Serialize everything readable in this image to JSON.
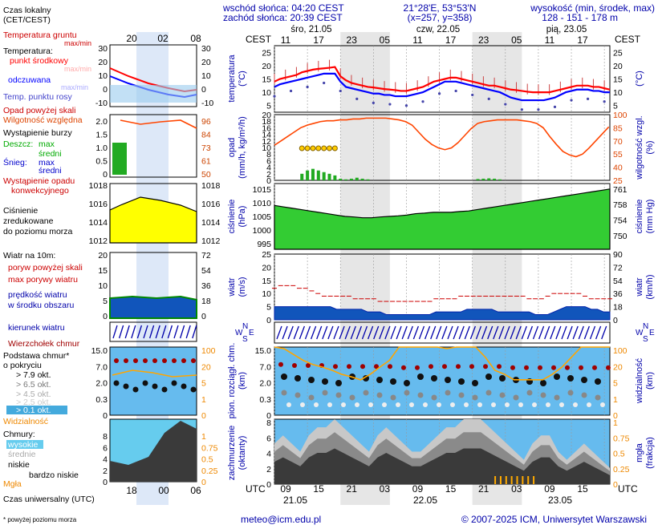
{
  "header": {
    "sunrise": "wschód słońca: 04:20 CEST",
    "sunset": "zachód słońca: 20:39 CEST",
    "coords": "21°28'E, 53°53'N",
    "grid": "(x=257, y=358)",
    "elev_label": "wysokość (min, środek, max)",
    "elev_values": "128 - 151 - 178 m"
  },
  "footer": {
    "note": "* powyżej poziomu morza",
    "email": "meteo@icm.edu.pl",
    "copyright": "© 2007-2025 ICM, Uniwersytet Warszawski"
  },
  "legend": {
    "local_time": "Czas lokalny",
    "local_time2": "(CET/CEST)",
    "soil_temp": "Temperatura gruntu",
    "soil_maxmin": "max/min",
    "temperature": "Temperatura:",
    "midpoint": "punkt środkowy",
    "maxmin": "max/min",
    "felt": "odczuwana",
    "felt_maxmin": "max/min",
    "dewpoint": "Temp. punktu rosy",
    "precip_above": "Opad powyżej skali",
    "humidity": "Wilgotność względna",
    "storm": "Wystąpienie burzy",
    "rain": "Deszcz:",
    "rain_max": "max",
    "rain_mean": "średni",
    "snow": "Śnieg:",
    "snow_max": "max",
    "snow_mean": "średni",
    "conv1": "Wystąpienie opadu",
    "conv2": "konwekcyjnego",
    "pressure1": "Ciśnienie",
    "pressure2": "zredukowane",
    "pressure3": "do poziomu morza",
    "wind_title": "Wiatr na 10m:",
    "gust_above": "poryw powyżej skali",
    "gust_max": "max porywy wiatru",
    "wind_mean1": "prędkość wiatru",
    "wind_mean2": "w środku obszaru",
    "wind_dir": "kierunek wiatru",
    "cloud_top": "Wierzchołek chmur",
    "cloud_base1": "Podstawa chmur*",
    "cloud_base2": "o pokryciu",
    "okt79": "> 7.9 okt.",
    "okt65": "> 6.5 okt.",
    "okt45": "> 4.5 okt.",
    "okt25": "> 2.5 okt.",
    "okt01": "> 0.1 okt.",
    "visibility": "Widzialność",
    "clouds": "Chmury:",
    "high": "wysokie",
    "mid": "średnie",
    "low": "niskie",
    "verylow": "bardzo niskie",
    "fog": "Mgła",
    "utc_time": "Czas uniwersalny (UTC)"
  },
  "mini_axis": {
    "top_ticks": [
      "20",
      "02",
      "08"
    ],
    "bottom_ticks": [
      "18",
      "00",
      "06"
    ],
    "temp_left": [
      "30",
      "20",
      "10",
      "0",
      "-10"
    ],
    "temp_right": [
      "30",
      "20",
      "10",
      "0",
      "-10"
    ],
    "prec_left": [
      "2.0",
      "1.5",
      "1.0",
      "0.5",
      "0"
    ],
    "prec_right": [
      "96",
      "84",
      "73",
      "61",
      "50"
    ],
    "pres_left": [
      "1018",
      "1016",
      "1014",
      "1012"
    ],
    "pres_right": [
      "1018",
      "1016",
      "1014",
      "1012"
    ],
    "wind_left": [
      "20",
      "15",
      "10",
      "5",
      "0"
    ],
    "wind_right": [
      "72",
      "54",
      "36",
      "18",
      "0"
    ],
    "cb_left": [
      "15.0",
      "7.0",
      "2.0",
      "0.3",
      "0"
    ],
    "cb_right": [
      "100",
      "20",
      "5",
      "1",
      "0"
    ],
    "cl_left": [
      "8",
      "6",
      "4",
      "2",
      "0"
    ],
    "cl_right": [
      "1",
      "0.75",
      "0.5",
      "0.25",
      "0"
    ]
  },
  "main_axis": {
    "cest": "CEST",
    "utc": "UTC",
    "days_top": [
      "śro, 21.05",
      "czw, 22.05",
      "pią, 23.05"
    ],
    "hours_top": [
      "11",
      "17",
      "23",
      "05",
      "11",
      "17",
      "23",
      "05",
      "11",
      "17"
    ],
    "hours_bottom": [
      "09",
      "15",
      "21",
      "03",
      "09",
      "15",
      "21",
      "03",
      "09",
      "15"
    ],
    "days_bottom": [
      "21.05",
      "22.05",
      "23.05"
    ],
    "temp_ticks": [
      "25",
      "20",
      "15",
      "10",
      "5"
    ],
    "prec_left": [
      "20",
      "18",
      "16",
      "14",
      "12",
      "10",
      "8",
      "6",
      "4",
      "2",
      "0"
    ],
    "prec_right": [
      "100",
      "85",
      "70",
      "55",
      "40",
      "25"
    ],
    "pres_left": [
      "1015",
      "1010",
      "1005",
      "1000",
      "995"
    ],
    "pres_right": [
      "761",
      "758",
      "754",
      "750"
    ],
    "wind_left": [
      "25",
      "20",
      "15",
      "10",
      "5",
      "0"
    ],
    "wind_right": [
      "90",
      "72",
      "54",
      "36",
      "18",
      "0"
    ],
    "cb_left": [
      "15.0",
      "7.0",
      "2.0",
      "0.3",
      "0"
    ],
    "cb_right": [
      "100",
      "20",
      "5",
      "1",
      "0"
    ],
    "cl_left": [
      "8",
      "6",
      "4",
      "2",
      "0"
    ],
    "cl_right": [
      "1",
      "0.75",
      "0.5",
      "0.25",
      "0"
    ],
    "dir_labels": [
      "N",
      "W",
      "E",
      "S"
    ]
  },
  "panel_titles": {
    "temp_l": "temperatura",
    "temp_l2": "(°C)",
    "temp_r": "(°C)",
    "prec_l": "opad",
    "prec_l2": "(mm/h, kg/m²/h)",
    "prec_r": "wilgotność wzgl.",
    "prec_r2": "(%)",
    "pres_l": "ciśnienie",
    "pres_l2": "(hPa)",
    "pres_r": "ciśnienie",
    "pres_r2": "(mm Hg)",
    "wind_l": "wiatr",
    "wind_l2": "(m/s)",
    "wind_r": "wiatr",
    "wind_r2": "(km/h)",
    "cb_l": "pion. rozciągł. chm.",
    "cb_l2": "(km)",
    "cb_r": "widzialność",
    "cb_r2": "(km)",
    "cl_l": "zachmurzenie",
    "cl_l2": "(oktanty)",
    "cl_r": "mgła",
    "cl_r2": "(frakcja)"
  },
  "colors": {
    "temp": "#ff0000",
    "felt": "#0000ff",
    "pressure": "#00cc00",
    "humidity": "#ff4500",
    "wind": "#0040c0",
    "visibility": "#ffa500",
    "cloudtop": "#a00000"
  },
  "chart_data": {
    "type": "line",
    "x_start": "2025-05-21 09:00 UTC",
    "step_hours": 1,
    "temperature_c": [
      14,
      15,
      15.5,
      16,
      16.5,
      17.5,
      18,
      18.5,
      18.8,
      19,
      19.2,
      19.5,
      16,
      14.5,
      13.5,
      13,
      12.5,
      12,
      11.8,
      11.5,
      11.2,
      11,
      10.8,
      10.5,
      10.5,
      11,
      11.5,
      12,
      13,
      14,
      14.5,
      15,
      15.5,
      15.5,
      15,
      14.5,
      14,
      13.5,
      13,
      12.5,
      12.5,
      12,
      11.5,
      11,
      10.8,
      10.5,
      10.2,
      10,
      10,
      10,
      10,
      10.5,
      11,
      11.5,
      12,
      12.5,
      12.5,
      12.5,
      12,
      12,
      11.5,
      11
    ],
    "felt_c": [
      12,
      13,
      13.5,
      14,
      14.5,
      15,
      15.5,
      16,
      16.5,
      17,
      17,
      17,
      14,
      12,
      11.5,
      11,
      10.5,
      10,
      9.5,
      9.5,
      9,
      9,
      8.5,
      8.5,
      8.5,
      9,
      9.5,
      10,
      11,
      12,
      13,
      14,
      14,
      14,
      13.5,
      13,
      12.5,
      12,
      11.5,
      11,
      10.5,
      10,
      9,
      8,
      7.5,
      7,
      7,
      7,
      7,
      7,
      7.5,
      8,
      9,
      10,
      10.5,
      11,
      11,
      11,
      10.5,
      10.5,
      10,
      10
    ],
    "humidity_pct": [
      65,
      70,
      75,
      80,
      85,
      88,
      90,
      92,
      93,
      93,
      94,
      94,
      95,
      95,
      96,
      96,
      96,
      96,
      95,
      94,
      92,
      88,
      80,
      72,
      66,
      62,
      60,
      62,
      68,
      76,
      84,
      90,
      92,
      93,
      94,
      94,
      94,
      94,
      93,
      92,
      90,
      85,
      75,
      66,
      58,
      54,
      52,
      55,
      62,
      70,
      78,
      86
    ],
    "precip_bars_mm": [
      0,
      0,
      0,
      0,
      0,
      2,
      3,
      3.5,
      3,
      2.5,
      2,
      1.5,
      0.5,
      0.3,
      0.5,
      0.8,
      0.5,
      0.3,
      0,
      0,
      0,
      0,
      0,
      0,
      0,
      0,
      0,
      0,
      0,
      0,
      0,
      0,
      0,
      0,
      0,
      0,
      0,
      0.4,
      0.5,
      0.6,
      0.5,
      0.3,
      0,
      0,
      0,
      0,
      0,
      0,
      0,
      0,
      0,
      0,
      0,
      0,
      0,
      0,
      0,
      0
    ],
    "pressure_hpa": [
      1009,
      1008.5,
      1008,
      1007.5,
      1007,
      1006.5,
      1006,
      1005.5,
      1005,
      1004.8,
      1004.5,
      1004.5,
      1004.8,
      1005,
      1005.2,
      1005.5,
      1006,
      1006.2,
      1006.5,
      1006.5,
      1006.5,
      1006.8,
      1007,
      1007.5,
      1008,
      1008.5,
      1009,
      1009.5,
      1010,
      1010.5,
      1011,
      1011.5,
      1012,
      1012.5,
      1013,
      1013.5,
      1014,
      1014.5,
      1015
    ],
    "wind_mean_ms": [
      5,
      5,
      5,
      5,
      5,
      5,
      5,
      5,
      5,
      5,
      4,
      4,
      4,
      4,
      4,
      3,
      3,
      3,
      2,
      2,
      2,
      2,
      2,
      2,
      2,
      2,
      3,
      3,
      3,
      3,
      3,
      4,
      4,
      4,
      4,
      4,
      3,
      3,
      3,
      3,
      3,
      3,
      2,
      2,
      2,
      3,
      4,
      5,
      5,
      5,
      5,
      4,
      4,
      3,
      3
    ],
    "wind_gust_ms": [
      12,
      13,
      13,
      13,
      12,
      12,
      11,
      10,
      9,
      9,
      9,
      9,
      9,
      8,
      8,
      8,
      8,
      7,
      7,
      7,
      7,
      7,
      7,
      7,
      7,
      7,
      8,
      8,
      8,
      8,
      9,
      9,
      9,
      9,
      9,
      9,
      9,
      9,
      9,
      9,
      9,
      8,
      8,
      8,
      9,
      10,
      10,
      10,
      10,
      10,
      9,
      8,
      8,
      8,
      8
    ],
    "cloud_top_km": [
      15,
      14,
      14,
      14,
      13,
      13,
      13,
      13,
      13,
      12,
      12,
      13,
      13,
      13,
      13,
      13,
      13,
      12,
      12,
      12,
      12,
      12,
      12,
      12,
      12
    ],
    "visibility_km": [
      20,
      18,
      12,
      8,
      6,
      5,
      4,
      3,
      2.5,
      2,
      3,
      5,
      8,
      20,
      20,
      20,
      20,
      20,
      18,
      20,
      20,
      20,
      10,
      4,
      3,
      2,
      2,
      2,
      2,
      3,
      5,
      10,
      20,
      20,
      20,
      20
    ],
    "cloud_cover_okt": [
      5,
      6,
      5,
      4,
      6,
      7,
      7,
      8,
      7,
      6,
      5,
      4,
      6,
      7,
      6,
      5,
      4,
      4,
      5,
      6,
      7,
      7,
      8,
      8,
      8,
      7,
      6,
      5,
      4,
      3,
      5,
      6,
      6,
      4,
      3,
      4,
      5,
      4,
      3,
      2
    ]
  }
}
